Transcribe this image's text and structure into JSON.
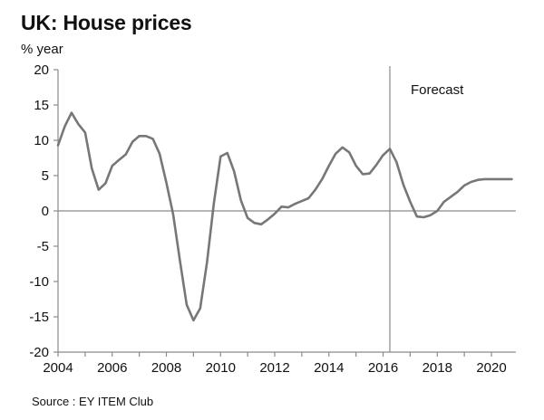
{
  "chart_data": {
    "type": "line",
    "title": "UK: House prices",
    "ylabel": "% year",
    "xlabel": "",
    "source": "Source : EY ITEM Club",
    "xlim": [
      2004,
      2020.9
    ],
    "ylim": [
      -20,
      20
    ],
    "yticks": [
      20,
      15,
      10,
      5,
      0,
      -5,
      -10,
      -15,
      -20
    ],
    "ytick_labels": [
      "20",
      "15",
      "10",
      "5",
      "0",
      "-5",
      "-10",
      "-15",
      "-20"
    ],
    "xticks": [
      2004,
      2006,
      2008,
      2010,
      2012,
      2014,
      2016,
      2018,
      2020
    ],
    "xtick_labels": [
      "2004",
      "2006",
      "2008",
      "2010",
      "2012",
      "2014",
      "2016",
      "2018",
      "2020"
    ],
    "xminor_ticks": [
      2005,
      2007,
      2009,
      2011,
      2013,
      2015,
      2017,
      2019
    ],
    "grid": false,
    "legend": "none",
    "annotations": [
      {
        "text": "Forecast",
        "x": 2016.25
      }
    ],
    "forecast_start": 2016.25,
    "line_color": "#777777",
    "series": [
      {
        "name": "House prices % year",
        "x": [
          2004.0,
          2004.25,
          2004.5,
          2004.75,
          2005.0,
          2005.25,
          2005.5,
          2005.75,
          2006.0,
          2006.25,
          2006.5,
          2006.75,
          2007.0,
          2007.25,
          2007.5,
          2007.75,
          2008.0,
          2008.25,
          2008.5,
          2008.75,
          2009.0,
          2009.25,
          2009.5,
          2009.75,
          2010.0,
          2010.25,
          2010.5,
          2010.75,
          2011.0,
          2011.25,
          2011.5,
          2011.75,
          2012.0,
          2012.25,
          2012.5,
          2012.75,
          2013.0,
          2013.25,
          2013.5,
          2013.75,
          2014.0,
          2014.25,
          2014.5,
          2014.75,
          2015.0,
          2015.25,
          2015.5,
          2015.75,
          2016.0,
          2016.25,
          2016.5,
          2016.75,
          2017.0,
          2017.25,
          2017.5,
          2017.75,
          2018.0,
          2018.25,
          2018.5,
          2018.75,
          2019.0,
          2019.25,
          2019.5,
          2019.75,
          2020.0,
          2020.25,
          2020.5,
          2020.75
        ],
        "values": [
          9.3,
          12.0,
          13.9,
          12.3,
          11.1,
          6.0,
          3.0,
          3.9,
          6.4,
          7.2,
          8.0,
          9.8,
          10.6,
          10.6,
          10.2,
          8.1,
          4.0,
          -0.5,
          -7.0,
          -13.3,
          -15.5,
          -13.8,
          -7.3,
          1.0,
          7.7,
          8.2,
          5.6,
          1.5,
          -1.0,
          -1.7,
          -1.9,
          -1.2,
          -0.4,
          0.6,
          0.5,
          1.0,
          1.4,
          1.8,
          3.0,
          4.5,
          6.4,
          8.1,
          9.0,
          8.3,
          6.4,
          5.2,
          5.3,
          6.5,
          7.9,
          8.8,
          6.9,
          3.7,
          1.3,
          -0.8,
          -0.9,
          -0.6,
          0.0,
          1.3,
          2.0,
          2.7,
          3.6,
          4.1,
          4.4,
          4.5,
          4.5,
          4.5,
          4.5,
          4.5
        ]
      }
    ]
  }
}
